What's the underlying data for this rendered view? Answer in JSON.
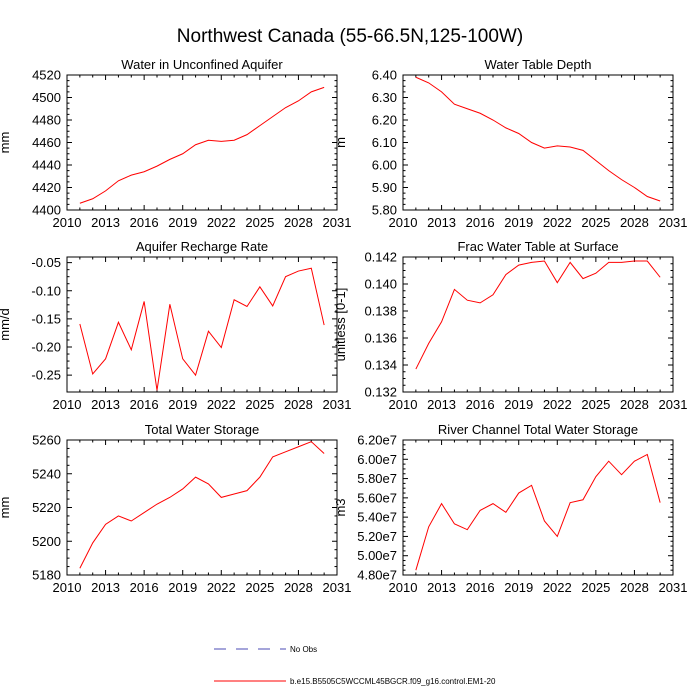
{
  "figure_title": "Northwest Canada (55-66.5N,125-100W)",
  "legend": {
    "no_obs_label": "No Obs",
    "no_obs_color": "#4b4bb4",
    "model_label": "b.e15.B5505C5WCCML45BGCR.f09_g16.control.EM1-20",
    "model_color": "#ff0000"
  },
  "chart_data": [
    {
      "type": "line",
      "title": "Water in Unconfined Aquifer",
      "ylabel": "mm",
      "xlabel": "",
      "xlim": [
        2010,
        2031
      ],
      "xticks": [
        2010,
        2013,
        2016,
        2019,
        2022,
        2025,
        2028,
        2031
      ],
      "ylim": [
        4400,
        4520
      ],
      "yticks": [
        4400,
        4420,
        4440,
        4460,
        4480,
        4500,
        4520
      ],
      "ytick_labels": [
        "4400",
        "4420",
        "4440",
        "4460",
        "4480",
        "4500",
        "4520"
      ],
      "x": [
        2011,
        2012,
        2013,
        2014,
        2015,
        2016,
        2017,
        2018,
        2019,
        2020,
        2021,
        2022,
        2023,
        2024,
        2025,
        2026,
        2027,
        2028,
        2029,
        2030
      ],
      "series": [
        {
          "name": "b.e15.B5505C5WCCML45BGCR.f09_g16.control.EM1-20",
          "values": [
            4406,
            4410,
            4417,
            4426,
            4431,
            4434,
            4439,
            4445,
            4450,
            4458,
            4462,
            4461,
            4462,
            4467,
            4475,
            4483,
            4491,
            4497,
            4505,
            4509
          ]
        }
      ]
    },
    {
      "type": "line",
      "title": "Water Table Depth",
      "ylabel": "m",
      "xlabel": "",
      "xlim": [
        2010,
        2031
      ],
      "xticks": [
        2010,
        2013,
        2016,
        2019,
        2022,
        2025,
        2028,
        2031
      ],
      "ylim": [
        5.8,
        6.4
      ],
      "yticks": [
        5.8,
        5.9,
        6.0,
        6.1,
        6.2,
        6.3,
        6.4
      ],
      "ytick_labels": [
        "5.80",
        "5.90",
        "6.00",
        "6.10",
        "6.20",
        "6.30",
        "6.40"
      ],
      "x": [
        2011,
        2012,
        2013,
        2014,
        2015,
        2016,
        2017,
        2018,
        2019,
        2020,
        2021,
        2022,
        2023,
        2024,
        2025,
        2026,
        2027,
        2028,
        2029,
        2030
      ],
      "series": [
        {
          "name": "b.e15.B5505C5WCCML45BGCR.f09_g16.control.EM1-20",
          "values": [
            6.39,
            6.365,
            6.325,
            6.27,
            6.25,
            6.23,
            6.2,
            6.165,
            6.14,
            6.1,
            6.075,
            6.085,
            6.08,
            6.065,
            6.02,
            5.975,
            5.935,
            5.9,
            5.86,
            5.84
          ]
        }
      ]
    },
    {
      "type": "line",
      "title": "Aquifer Recharge Rate",
      "ylabel": "mm/d",
      "xlabel": "",
      "xlim": [
        2010,
        2031
      ],
      "xticks": [
        2010,
        2013,
        2016,
        2019,
        2022,
        2025,
        2028,
        2031
      ],
      "ylim": [
        -0.28,
        -0.04
      ],
      "yticks": [
        -0.25,
        -0.2,
        -0.15,
        -0.1,
        -0.05
      ],
      "ytick_labels": [
        "-0.25",
        "-0.20",
        "-0.15",
        "-0.10",
        "-0.05"
      ],
      "x": [
        2011,
        2012,
        2013,
        2014,
        2015,
        2016,
        2017,
        2018,
        2019,
        2020,
        2021,
        2022,
        2023,
        2024,
        2025,
        2026,
        2027,
        2028,
        2029,
        2030
      ],
      "series": [
        {
          "name": "b.e15.B5505C5WCCML45BGCR.f09_g16.control.EM1-20",
          "values": [
            -0.159,
            -0.248,
            -0.221,
            -0.156,
            -0.205,
            -0.119,
            -0.277,
            -0.124,
            -0.221,
            -0.25,
            -0.172,
            -0.201,
            -0.116,
            -0.128,
            -0.093,
            -0.127,
            -0.075,
            -0.065,
            -0.06,
            -0.161
          ]
        }
      ]
    },
    {
      "type": "line",
      "title": "Frac Water Table at Surface",
      "ylabel": "unitless [0-1]",
      "xlabel": "",
      "xlim": [
        2010,
        2031
      ],
      "xticks": [
        2010,
        2013,
        2016,
        2019,
        2022,
        2025,
        2028,
        2031
      ],
      "ylim": [
        0.132,
        0.142
      ],
      "yticks": [
        0.132,
        0.134,
        0.136,
        0.138,
        0.14,
        0.142
      ],
      "ytick_labels": [
        "0.132",
        "0.134",
        "0.136",
        "0.138",
        "0.140",
        "0.142"
      ],
      "x": [
        2011,
        2012,
        2013,
        2014,
        2015,
        2016,
        2017,
        2018,
        2019,
        2020,
        2021,
        2022,
        2023,
        2024,
        2025,
        2026,
        2027,
        2028,
        2029,
        2030
      ],
      "series": [
        {
          "name": "b.e15.B5505C5WCCML45BGCR.f09_g16.control.EM1-20",
          "values": [
            0.1337,
            0.1356,
            0.1372,
            0.1396,
            0.1388,
            0.1386,
            0.1392,
            0.1407,
            0.1414,
            0.1416,
            0.1417,
            0.1401,
            0.1416,
            0.1404,
            0.1408,
            0.1416,
            0.1416,
            0.1417,
            0.1417,
            0.1405
          ]
        }
      ]
    },
    {
      "type": "line",
      "title": "Total Water Storage",
      "ylabel": "mm",
      "xlabel": "",
      "xlim": [
        2010,
        2031
      ],
      "xticks": [
        2010,
        2013,
        2016,
        2019,
        2022,
        2025,
        2028,
        2031
      ],
      "ylim": [
        5180,
        5260
      ],
      "yticks": [
        5180,
        5200,
        5220,
        5240,
        5260
      ],
      "ytick_labels": [
        "5180",
        "5200",
        "5220",
        "5240",
        "5260"
      ],
      "x": [
        2011,
        2012,
        2013,
        2014,
        2015,
        2016,
        2017,
        2018,
        2019,
        2020,
        2021,
        2022,
        2023,
        2024,
        2025,
        2026,
        2027,
        2028,
        2029,
        2030
      ],
      "series": [
        {
          "name": "b.e15.B5505C5WCCML45BGCR.f09_g16.control.EM1-20",
          "values": [
            5184,
            5199,
            5210,
            5215,
            5212,
            5217,
            5222,
            5226,
            5231,
            5238,
            5234,
            5226,
            5228,
            5230,
            5238,
            5250,
            5253,
            5256,
            5259,
            5252
          ]
        }
      ]
    },
    {
      "type": "line",
      "title": "River Channel Total Water Storage",
      "ylabel": "m3",
      "xlabel": "",
      "xlim": [
        2010,
        2031
      ],
      "xticks": [
        2010,
        2013,
        2016,
        2019,
        2022,
        2025,
        2028,
        2031
      ],
      "ylim": [
        48000000,
        62000000
      ],
      "yticks": [
        48000000,
        50000000,
        52000000,
        54000000,
        56000000,
        58000000,
        60000000,
        62000000
      ],
      "ytick_labels": [
        "4.80e7",
        "5.00e7",
        "5.20e7",
        "5.40e7",
        "5.60e7",
        "5.80e7",
        "6.00e7",
        "6.20e7"
      ],
      "x": [
        2011,
        2012,
        2013,
        2014,
        2015,
        2016,
        2017,
        2018,
        2019,
        2020,
        2021,
        2022,
        2023,
        2024,
        2025,
        2026,
        2027,
        2028,
        2029,
        2030
      ],
      "series": [
        {
          "name": "b.e15.B5505C5WCCML45BGCR.f09_g16.control.EM1-20",
          "values": [
            48500000,
            53000000,
            55400000,
            53300000,
            52700000,
            54700000,
            55400000,
            54500000,
            56500000,
            57300000,
            53600000,
            52000000,
            55500000,
            55800000,
            58200000,
            59800000,
            58400000,
            59800000,
            60500000,
            55500000
          ]
        }
      ]
    }
  ]
}
